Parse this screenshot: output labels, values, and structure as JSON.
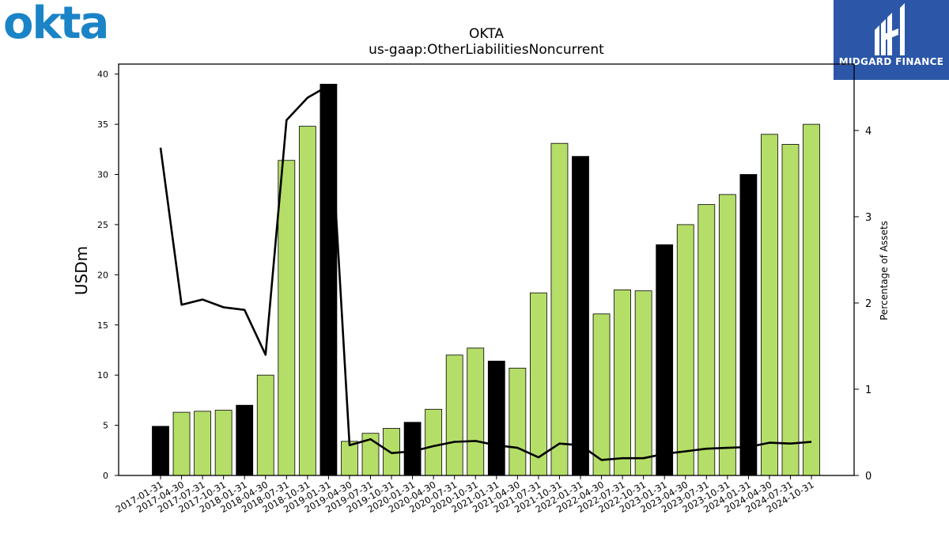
{
  "header": {
    "company_logo_text": "okta",
    "brand_name": "MIDGARD FINANCE"
  },
  "colors": {
    "bar_green": "#b5de69",
    "bar_black": "#000000",
    "line": "#000000",
    "logo_blue": "#1a84c6",
    "brand_box": "#2c57a8"
  },
  "chart_data": {
    "type": "bar",
    "title": "OKTA",
    "subtitle": "us-gaap:OtherLiabilitiesNoncurrent",
    "ylabel": "USDm",
    "y2label": "Percentage of Assets",
    "ylim": [
      0,
      41
    ],
    "y2lim": [
      0,
      4.77
    ],
    "yticks": [
      0,
      5,
      10,
      15,
      20,
      25,
      30,
      35,
      40
    ],
    "y2ticks": [
      0,
      1,
      2,
      3,
      4
    ],
    "grid": false,
    "categories": [
      "2017-01-31",
      "2017-04-30",
      "2017-07-31",
      "2017-10-31",
      "2018-01-31",
      "2018-04-30",
      "2018-07-31",
      "2018-10-31",
      "2019-01-31",
      "2019-04-30",
      "2019-07-31",
      "2019-10-31",
      "2020-01-31",
      "2020-04-30",
      "2020-07-31",
      "2020-10-31",
      "2021-01-31",
      "2021-04-30",
      "2021-07-31",
      "2021-10-31",
      "2022-01-31",
      "2022-04-30",
      "2022-07-31",
      "2022-10-31",
      "2023-01-31",
      "2023-04-30",
      "2023-07-31",
      "2023-10-31",
      "2024-01-31",
      "2024-04-30",
      "2024-07-31",
      "2024-10-31"
    ],
    "series": [
      {
        "kind": "bar",
        "values": [
          4.9,
          6.3,
          6.4,
          6.5,
          7.0,
          10.0,
          31.4,
          34.8,
          39.0,
          3.4,
          4.2,
          4.7,
          5.3,
          6.6,
          12.0,
          12.7,
          11.4,
          10.7,
          18.2,
          33.1,
          31.8,
          16.1,
          18.5,
          18.4,
          23.0,
          25.0,
          27.0,
          28.0,
          30.0,
          34.0,
          33.0,
          35.0
        ],
        "annual_flags": [
          true,
          false,
          false,
          false,
          true,
          false,
          false,
          false,
          true,
          false,
          false,
          false,
          true,
          false,
          false,
          false,
          true,
          false,
          false,
          false,
          true,
          false,
          false,
          false,
          true,
          false,
          false,
          false,
          true,
          false,
          false,
          false
        ]
      },
      {
        "kind": "line",
        "axis": "right",
        "values": [
          3.8,
          1.98,
          2.04,
          1.95,
          1.92,
          1.4,
          4.12,
          4.38,
          4.52,
          0.35,
          0.42,
          0.26,
          0.28,
          0.34,
          0.39,
          0.4,
          0.35,
          0.32,
          0.21,
          0.37,
          0.35,
          0.18,
          0.2,
          0.2,
          0.25,
          0.28,
          0.31,
          0.32,
          0.33,
          0.38,
          0.37,
          0.39
        ]
      }
    ]
  }
}
